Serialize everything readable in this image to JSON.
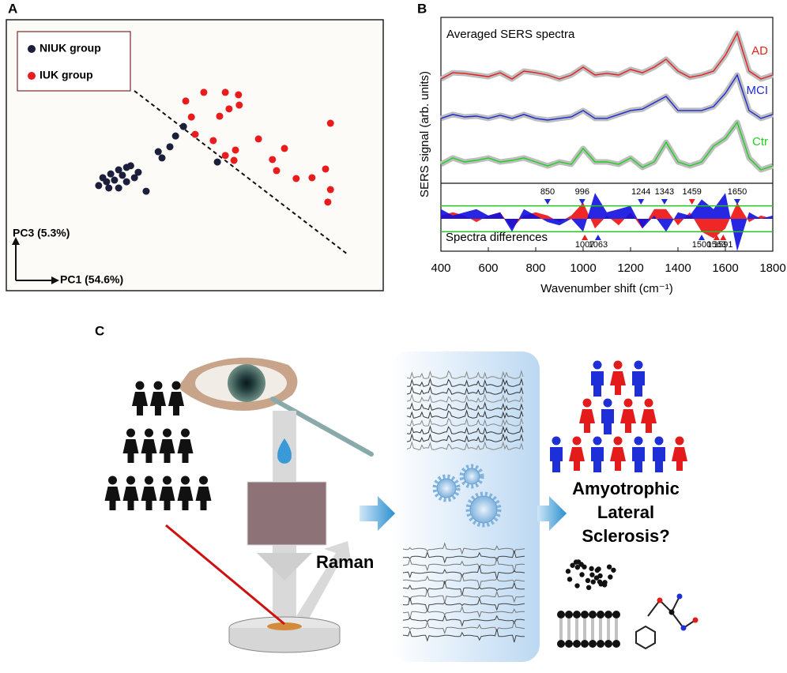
{
  "panels": [
    "A",
    "B",
    "C"
  ],
  "chart_data": [
    {
      "type": "scatter",
      "xlabel": "PC1 (54.6%)",
      "ylabel": "PC3 (5.3%)",
      "xlim": [
        0,
        100
      ],
      "ylim": [
        0,
        100
      ],
      "legend": "upper left",
      "series": [
        {
          "name": "NIUK group",
          "color": "#1b1f3b",
          "x": [
            24.5,
            25.6,
            26.6,
            27.7,
            28.7,
            29.8,
            30.8,
            31.9,
            33.0,
            34.0,
            35.0,
            37.1,
            29.8,
            27.2,
            31.9,
            40.3,
            43.4,
            41.3,
            44.9,
            47.0,
            56.0
          ],
          "values": [
            38.8,
            41.7,
            40.2,
            43.1,
            40.8,
            44.6,
            42.6,
            40.2,
            46.1,
            41.7,
            43.7,
            36.7,
            37.9,
            37.9,
            45.5,
            51.3,
            53.1,
            49.0,
            57.1,
            60.6,
            47.5
          ]
        },
        {
          "name": "IUK group",
          "color": "#e81c1c",
          "x": [
            47.6,
            49.1,
            52.4,
            58.1,
            61.6,
            59.1,
            61.8,
            56.6,
            50.1,
            54.9,
            66.9,
            60.8,
            58.1,
            60.4,
            70.6,
            71.7,
            73.8,
            76.9,
            81.1,
            84.7,
            86.0,
            86.0,
            85.3
          ],
          "values": [
            70.0,
            64.1,
            73.2,
            73.2,
            72.3,
            67.1,
            68.5,
            64.4,
            57.7,
            55.4,
            56.0,
            51.9,
            49.9,
            48.1,
            48.4,
            44.3,
            52.5,
            41.4,
            41.7,
            44.9,
            61.8,
            37.3,
            32.7
          ]
        }
      ]
    },
    {
      "type": "line",
      "title": "Averaged SERS spectra",
      "xlabel": "Wavenumber shift (cm⁻¹)",
      "ylabel": "SERS signal (arb. units)",
      "xlim": [
        400,
        1800
      ],
      "ylim": [
        0,
        10
      ],
      "xticks": [
        400,
        600,
        800,
        1000,
        1200,
        1400,
        1600,
        1800
      ],
      "x": [
        400,
        450,
        500,
        550,
        600,
        650,
        700,
        750,
        800,
        850,
        900,
        950,
        1000,
        1050,
        1100,
        1150,
        1200,
        1250,
        1300,
        1350,
        1400,
        1450,
        1500,
        1550,
        1600,
        1650,
        1700,
        1750,
        1800
      ],
      "series": [
        {
          "name": "AD",
          "color": "#e62020",
          "values": [
            6.25,
            6.63,
            6.59,
            6.49,
            6.39,
            6.63,
            6.25,
            6.73,
            6.63,
            6.49,
            6.25,
            6.49,
            6.97,
            6.49,
            6.59,
            6.49,
            6.83,
            6.63,
            6.97,
            7.45,
            6.73,
            6.35,
            6.49,
            6.73,
            7.69,
            9.04,
            6.73,
            6.25,
            6.49
          ]
        },
        {
          "name": "MCI",
          "color": "#1c2ad6",
          "values": [
            3.85,
            4.09,
            3.94,
            3.99,
            3.85,
            4.04,
            3.85,
            4.09,
            3.85,
            3.75,
            3.85,
            3.94,
            4.33,
            3.85,
            3.85,
            4.09,
            4.33,
            4.42,
            4.81,
            5.19,
            4.33,
            4.33,
            4.33,
            4.57,
            5.38,
            6.49,
            4.33,
            3.85,
            4.09
          ]
        },
        {
          "name": "Ctr",
          "color": "#1fd11f",
          "values": [
            1.06,
            1.44,
            1.2,
            1.3,
            1.44,
            1.2,
            1.3,
            1.44,
            1.2,
            0.96,
            1.2,
            1.06,
            2.02,
            1.2,
            1.2,
            1.06,
            1.44,
            0.87,
            1.2,
            2.4,
            1.2,
            0.96,
            1.2,
            2.16,
            2.64,
            3.61,
            1.44,
            0.72,
            0.96
          ]
        }
      ]
    },
    {
      "type": "area",
      "title": "Spectra differences",
      "xlim": [
        400,
        1800
      ],
      "ylim": [
        -1,
        1
      ],
      "thresholds": [
        -0.4,
        0.4
      ],
      "threshold_color": "#22c322",
      "x": [
        400,
        450,
        500,
        550,
        600,
        650,
        700,
        750,
        800,
        850,
        900,
        950,
        1000,
        1050,
        1100,
        1150,
        1200,
        1250,
        1300,
        1350,
        1400,
        1450,
        1500,
        1550,
        1600,
        1650,
        1700,
        1750,
        1800
      ],
      "series": [
        {
          "color": "#ee1010",
          "values": [
            0.1,
            0.2,
            0.1,
            -0.1,
            0.1,
            0.2,
            -0.3,
            0.1,
            0.2,
            0.1,
            -0.1,
            0.1,
            0.5,
            -0.3,
            0.1,
            -0.2,
            0.2,
            -0.3,
            0.3,
            0.3,
            -0.2,
            0.2,
            -0.4,
            -0.6,
            -0.3,
            0.5,
            -0.1,
            0.1,
            0
          ]
        },
        {
          "color": "#1010e0",
          "values": [
            0.3,
            0.1,
            0.2,
            0.3,
            0.1,
            0.2,
            -0.4,
            0.3,
            0.1,
            -0.1,
            -0.2,
            0,
            -0.4,
            0.8,
            0.2,
            0.3,
            0.4,
            -0.3,
            0.1,
            -0.4,
            0.2,
            0.1,
            0.6,
            0.3,
            0.8,
            -1.0,
            0.2,
            0,
            0.1
          ]
        }
      ],
      "peaks": [
        {
          "x": 850,
          "color": "#1c2ad6",
          "side": "top"
        },
        {
          "x": 996,
          "color": "#1c2ad6",
          "side": "top"
        },
        {
          "x": 1244,
          "color": "#1c2ad6",
          "side": "top"
        },
        {
          "x": 1343,
          "color": "#1c2ad6",
          "side": "top"
        },
        {
          "x": 1459,
          "color": "#e62020",
          "side": "top"
        },
        {
          "x": 1650,
          "color": "#1c2ad6",
          "side": "top"
        },
        {
          "x": 1007,
          "color": "#e62020",
          "side": "bottom"
        },
        {
          "x": 1063,
          "color": "#1c2ad6",
          "side": "bottom"
        },
        {
          "x": 1500,
          "color": "#1c2ad6",
          "side": "bottom"
        },
        {
          "x": 1563,
          "color": "#e62020",
          "side": "bottom"
        },
        {
          "x": 1591,
          "color": "#e62020",
          "side": "bottom"
        }
      ]
    }
  ],
  "diagram": {
    "raman": "Raman",
    "question": [
      "Amyotrophic",
      "Lateral",
      "Sclerosis?"
    ]
  }
}
